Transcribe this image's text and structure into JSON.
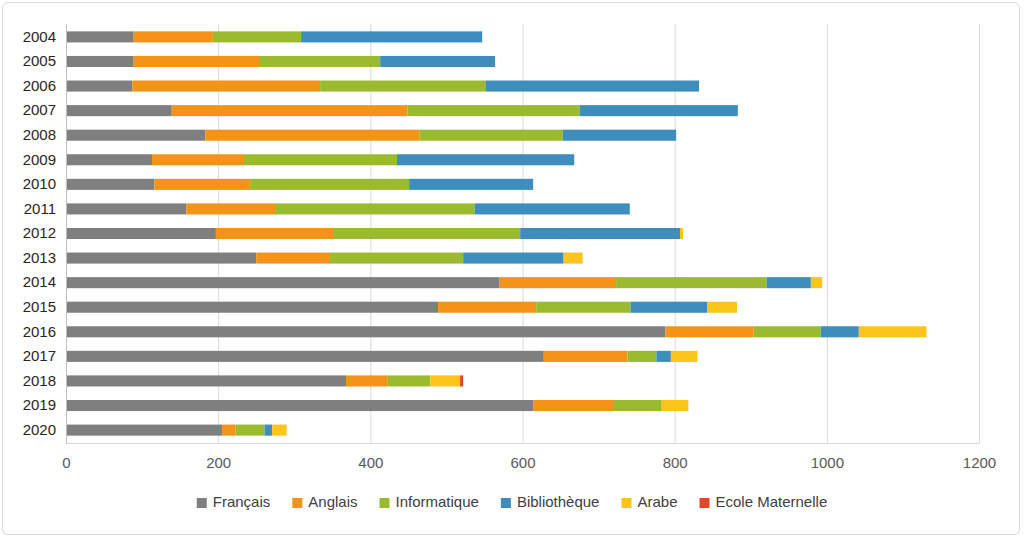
{
  "chart_data": {
    "type": "bar",
    "orientation": "horizontal",
    "stacked": true,
    "grid": true,
    "legend": "bottom",
    "categories": [
      "2004",
      "2005",
      "2006",
      "2007",
      "2008",
      "2009",
      "2010",
      "2011",
      "2012",
      "2013",
      "2014",
      "2015",
      "2016",
      "2017",
      "2018",
      "2019",
      "2020"
    ],
    "xlim": [
      0,
      1200
    ],
    "xticks": [
      0,
      200,
      400,
      600,
      800,
      1000,
      1200
    ],
    "series": [
      {
        "name": "Français",
        "color": "#7f7f7f",
        "values": [
          89,
          89,
          87,
          139,
          183,
          113,
          116,
          158,
          197,
          250,
          570,
          489,
          788,
          628,
          368,
          614,
          205
        ]
      },
      {
        "name": "Anglais",
        "color": "#f39419",
        "values": [
          104,
          166,
          247,
          310,
          282,
          121,
          126,
          118,
          154,
          97,
          153,
          129,
          116,
          110,
          55,
          105,
          18
        ]
      },
      {
        "name": "Informatique",
        "color": "#9bbb2e",
        "values": [
          116,
          158,
          218,
          226,
          188,
          201,
          209,
          261,
          246,
          175,
          198,
          124,
          88,
          38,
          56,
          64,
          38
        ]
      },
      {
        "name": "Bibliothèque",
        "color": "#3d8dbd",
        "values": [
          238,
          151,
          280,
          208,
          149,
          233,
          163,
          204,
          210,
          132,
          58,
          101,
          50,
          19,
          0,
          0,
          10
        ]
      },
      {
        "name": "Arabe",
        "color": "#fdc41c",
        "values": [
          0,
          0,
          0,
          0,
          0,
          0,
          0,
          0,
          4,
          25,
          15,
          39,
          89,
          35,
          39,
          35,
          19
        ]
      },
      {
        "name": "Ecole Maternelle",
        "color": "#e8432b",
        "values": [
          0,
          0,
          0,
          0,
          0,
          0,
          0,
          0,
          0,
          0,
          0,
          0,
          0,
          0,
          4,
          0,
          0
        ]
      }
    ]
  }
}
